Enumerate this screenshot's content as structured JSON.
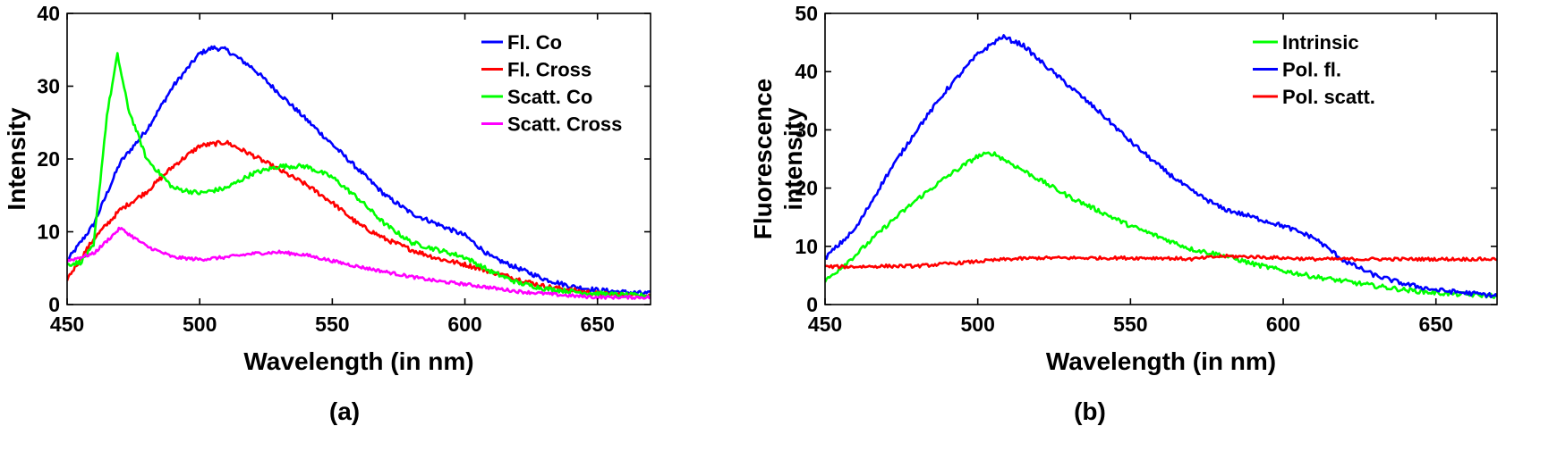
{
  "chart_data": [
    {
      "panel": "(a)",
      "type": "line",
      "xlabel": "Wavelength (in nm)",
      "ylabel": "Intensity",
      "xlim": [
        450,
        670
      ],
      "ylim": [
        0,
        40
      ],
      "xticks": [
        450,
        500,
        550,
        600,
        650
      ],
      "yticks": [
        0,
        10,
        20,
        30,
        40
      ],
      "grid": false,
      "legend_position": "top-right",
      "series": [
        {
          "name": "Fl. Co",
          "color": "#0000ff",
          "x": [
            450,
            460,
            470,
            480,
            490,
            500,
            505,
            510,
            520,
            530,
            540,
            550,
            560,
            570,
            580,
            590,
            600,
            610,
            620,
            630,
            640,
            650,
            660,
            670
          ],
          "y": [
            6,
            11,
            19.5,
            24,
            30,
            34.5,
            35.3,
            35,
            32.5,
            29,
            25.5,
            22,
            18.5,
            15,
            12.5,
            11,
            9.5,
            6.5,
            5,
            3.5,
            2.5,
            2,
            1.7,
            1.5
          ]
        },
        {
          "name": "Fl. Cross",
          "color": "#ff0000",
          "x": [
            450,
            460,
            470,
            480,
            490,
            500,
            510,
            520,
            530,
            540,
            550,
            560,
            570,
            580,
            590,
            600,
            610,
            620,
            630,
            640,
            650,
            660,
            670
          ],
          "y": [
            3.5,
            9,
            13,
            15.5,
            19,
            21.8,
            22.3,
            20.5,
            18.5,
            16.5,
            14,
            11,
            9,
            7.5,
            6.3,
            5.5,
            4.5,
            3.5,
            2.5,
            2,
            1.5,
            1.3,
            1.2
          ]
        },
        {
          "name": "Scatt. Co",
          "color": "#00ff00",
          "x": [
            450,
            455,
            460,
            465,
            469,
            473,
            480,
            490,
            500,
            510,
            520,
            530,
            540,
            550,
            560,
            570,
            580,
            590,
            600,
            610,
            620,
            630,
            640,
            650,
            660,
            670
          ],
          "y": [
            5.5,
            5.8,
            8,
            26,
            34.3,
            27,
            20,
            16,
            15.3,
            16,
            18,
            19,
            19,
            17.5,
            14.5,
            11,
            8.5,
            7.5,
            6.5,
            4.5,
            3,
            2.2,
            1.8,
            1.5,
            1.3,
            1.2
          ]
        },
        {
          "name": "Scatt. Cross",
          "color": "#ff00ff",
          "x": [
            450,
            460,
            470,
            480,
            490,
            500,
            510,
            520,
            530,
            540,
            550,
            560,
            570,
            580,
            590,
            600,
            610,
            620,
            630,
            640,
            650,
            660,
            670
          ],
          "y": [
            6,
            7,
            10.5,
            8,
            6.5,
            6.2,
            6.5,
            7,
            7.2,
            6.8,
            6,
            5.2,
            4.5,
            3.8,
            3.2,
            2.8,
            2.3,
            1.8,
            1.5,
            1.2,
            1,
            1,
            1
          ]
        }
      ]
    },
    {
      "panel": "(b)",
      "type": "line",
      "xlabel": "Wavelength (in nm)",
      "ylabel": [
        "Fluorescence",
        "intensity"
      ],
      "xlim": [
        450,
        670
      ],
      "ylim": [
        0,
        50
      ],
      "xticks": [
        450,
        500,
        550,
        600,
        650
      ],
      "yticks": [
        0,
        10,
        20,
        30,
        40,
        50
      ],
      "grid": false,
      "legend_position": "top-right",
      "series": [
        {
          "name": "Intrinsic",
          "color": "#00ff00",
          "x": [
            450,
            460,
            470,
            480,
            490,
            500,
            505,
            510,
            520,
            530,
            540,
            550,
            560,
            570,
            580,
            590,
            600,
            610,
            620,
            630,
            640,
            650,
            660,
            670
          ],
          "y": [
            4,
            8.5,
            13.5,
            18,
            22,
            25.5,
            26,
            24.5,
            21.5,
            18.5,
            16,
            13.5,
            11.5,
            9.5,
            8.5,
            7,
            5.8,
            4.8,
            4,
            3.2,
            2.5,
            2,
            1.7,
            1.5
          ]
        },
        {
          "name": "Pol. fl.",
          "color": "#0000ff",
          "x": [
            450,
            460,
            470,
            480,
            490,
            500,
            508,
            515,
            520,
            530,
            540,
            550,
            560,
            570,
            580,
            590,
            600,
            610,
            620,
            630,
            640,
            650,
            660,
            670
          ],
          "y": [
            8,
            13,
            22,
            30,
            37,
            43,
            46,
            44.5,
            42,
            37.5,
            33,
            28,
            23.5,
            19.5,
            16.5,
            15,
            13.5,
            11.5,
            7.5,
            5,
            3.5,
            2.5,
            2,
            1.5
          ]
        },
        {
          "name": "Pol. scatt.",
          "color": "#ff0000",
          "x": [
            450,
            460,
            470,
            480,
            490,
            500,
            510,
            520,
            530,
            540,
            550,
            560,
            570,
            580,
            590,
            600,
            610,
            620,
            630,
            640,
            650,
            660,
            670
          ],
          "y": [
            6.5,
            6.5,
            6.6,
            6.6,
            7,
            7.4,
            7.8,
            8,
            8,
            8,
            8,
            8,
            7.8,
            8.3,
            8.2,
            8,
            7.8,
            7.8,
            7.8,
            7.8,
            7.8,
            7.8,
            7.8
          ]
        }
      ]
    }
  ]
}
